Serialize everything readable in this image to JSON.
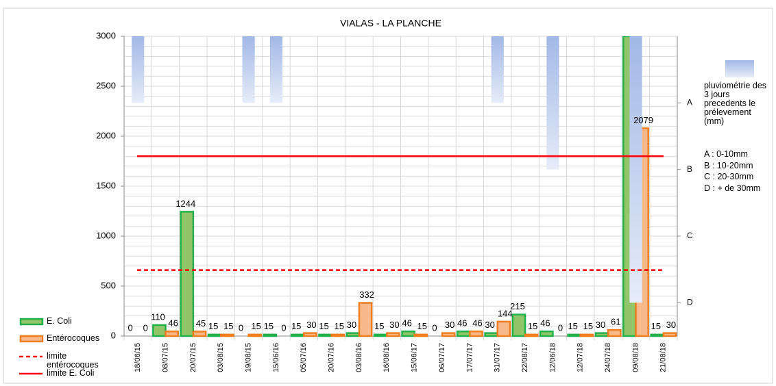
{
  "chart_data": {
    "type": "bar",
    "title": "VIALAS - LA PLANCHE",
    "categories": [
      "18/06/15",
      "08/07/15",
      "20/07/15",
      "03/08/15",
      "19/08/15",
      "15/06/16",
      "05/07/16",
      "20/07/16",
      "03/08/16",
      "16/08/16",
      "15/06/17",
      "06/07/17",
      "17/07/17",
      "31/07/17",
      "22/08/17",
      "12/06/18",
      "12/07/18",
      "24/07/18",
      "09/08/18",
      "21/08/18"
    ],
    "series": [
      {
        "name": "E. Coli",
        "color": "#22b04a",
        "fill": "#92c56a",
        "values": [
          0,
          110,
          1244,
          15,
          0,
          15,
          15,
          15,
          30,
          15,
          46,
          0,
          46,
          30,
          215,
          46,
          15,
          30,
          3000,
          15
        ],
        "value_labels": [
          "0",
          "110",
          "1244",
          "15",
          "0",
          "15",
          "15",
          "15",
          "30",
          "15",
          "46",
          "0",
          "46",
          "30",
          "215",
          "46",
          "15",
          "30",
          null,
          "15"
        ]
      },
      {
        "name": "Entérocoques",
        "color": "#f07d1e",
        "fill": "#f8b98a",
        "values": [
          0,
          46,
          45,
          15,
          15,
          0,
          30,
          15,
          332,
          30,
          15,
          30,
          46,
          144,
          15,
          0,
          15,
          61,
          2079,
          30
        ]
      },
      {
        "name": "pluviométrie des 3 jours precedents le prélevement (mm)",
        "axis": "y2",
        "color": "#a2b8e6",
        "values": [
          1,
          null,
          null,
          null,
          1,
          1,
          null,
          null,
          null,
          null,
          null,
          null,
          null,
          1,
          null,
          2,
          null,
          null,
          4,
          null
        ]
      }
    ],
    "limits": [
      {
        "name": "limite entérocoques",
        "value": 660,
        "color": "#ff0000",
        "dashed": true
      },
      {
        "name": "limite E. Coli",
        "value": 1800,
        "color": "#ff0000",
        "dashed": false
      }
    ],
    "rain_legend": [
      "A : 0-10mm",
      "B : 10-20mm",
      "C : 20-30mm",
      "D : + de 30mm"
    ],
    "ylim": [
      0,
      3000
    ],
    "yticks": [
      0,
      500,
      1000,
      1500,
      2000,
      2500,
      3000
    ],
    "grid_yticks": [
      0,
      100,
      200,
      300,
      400,
      500,
      600,
      700,
      800,
      900,
      1000,
      1100,
      1200,
      1300,
      1400,
      1500,
      1600,
      1700,
      1800,
      1900,
      2000,
      2100,
      2200,
      2300,
      2400,
      2500,
      2600,
      2700,
      2800,
      2900,
      3000
    ],
    "y2lim": [
      4.5,
      0
    ],
    "y2ticks": [
      {
        "value": 1,
        "label": "A"
      },
      {
        "value": 2,
        "label": "B"
      },
      {
        "value": 3,
        "label": "C"
      },
      {
        "value": 4,
        "label": "D"
      }
    ],
    "grid": true
  }
}
